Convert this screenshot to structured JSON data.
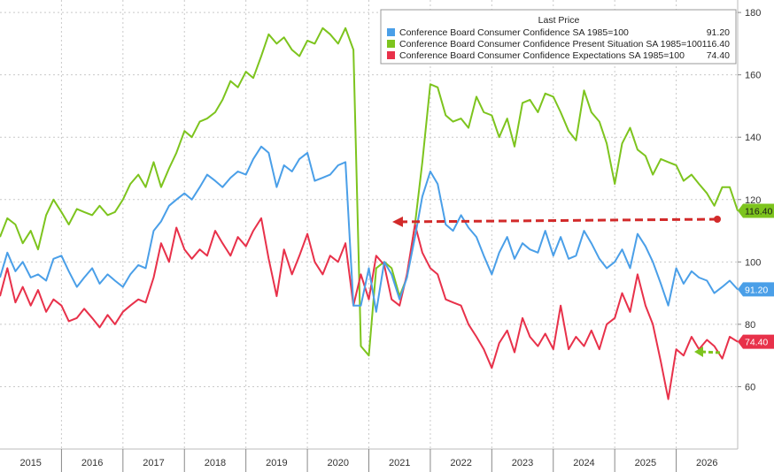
{
  "chart_data": {
    "type": "line",
    "title": "",
    "xlabel": "",
    "ylabel": "",
    "ylim": [
      40,
      184
    ],
    "xlim": [
      2014.5,
      2026.5
    ],
    "y_ticks": [
      60,
      80,
      100,
      120,
      140,
      160,
      180
    ],
    "x_tick_labels": [
      "2015",
      "2016",
      "2017",
      "2018",
      "2019",
      "2020",
      "2021",
      "2022",
      "2023",
      "2024",
      "2025",
      "2026"
    ],
    "grid": true,
    "legend": {
      "placement": "top-right",
      "header": "Last Price"
    },
    "series": [
      {
        "name": "Conference Board Consumer Confidence SA 1985=100",
        "last_price": "91.20",
        "color": "#4a9fe8",
        "points": [
          [
            2014.5,
            95
          ],
          [
            2014.62,
            103
          ],
          [
            2014.75,
            97
          ],
          [
            2014.87,
            100
          ],
          [
            2015.0,
            95
          ],
          [
            2015.12,
            96
          ],
          [
            2015.25,
            94
          ],
          [
            2015.37,
            101
          ],
          [
            2015.5,
            102
          ],
          [
            2015.62,
            97
          ],
          [
            2015.75,
            92
          ],
          [
            2015.87,
            95
          ],
          [
            2016.0,
            98
          ],
          [
            2016.12,
            93
          ],
          [
            2016.25,
            96
          ],
          [
            2016.37,
            94
          ],
          [
            2016.5,
            92
          ],
          [
            2016.62,
            96
          ],
          [
            2016.75,
            99
          ],
          [
            2016.87,
            98
          ],
          [
            2017.0,
            110
          ],
          [
            2017.12,
            113
          ],
          [
            2017.25,
            118
          ],
          [
            2017.37,
            120
          ],
          [
            2017.5,
            122
          ],
          [
            2017.62,
            120
          ],
          [
            2017.75,
            124
          ],
          [
            2017.87,
            128
          ],
          [
            2018.0,
            126
          ],
          [
            2018.12,
            124
          ],
          [
            2018.25,
            127
          ],
          [
            2018.37,
            129
          ],
          [
            2018.5,
            128
          ],
          [
            2018.62,
            133
          ],
          [
            2018.75,
            137
          ],
          [
            2018.87,
            135
          ],
          [
            2019.0,
            124
          ],
          [
            2019.12,
            131
          ],
          [
            2019.25,
            129
          ],
          [
            2019.37,
            133
          ],
          [
            2019.5,
            135
          ],
          [
            2019.62,
            126
          ],
          [
            2019.75,
            127
          ],
          [
            2019.87,
            128
          ],
          [
            2020.0,
            131
          ],
          [
            2020.12,
            132
          ],
          [
            2020.25,
            86
          ],
          [
            2020.37,
            86
          ],
          [
            2020.5,
            98
          ],
          [
            2020.62,
            84
          ],
          [
            2020.75,
            100
          ],
          [
            2020.87,
            96
          ],
          [
            2021.0,
            88
          ],
          [
            2021.12,
            95
          ],
          [
            2021.25,
            108
          ],
          [
            2021.37,
            121
          ],
          [
            2021.5,
            129
          ],
          [
            2021.62,
            125
          ],
          [
            2021.75,
            112
          ],
          [
            2021.87,
            110
          ],
          [
            2022.0,
            115
          ],
          [
            2022.12,
            111
          ],
          [
            2022.25,
            108
          ],
          [
            2022.37,
            102
          ],
          [
            2022.5,
            96
          ],
          [
            2022.62,
            103
          ],
          [
            2022.75,
            108
          ],
          [
            2022.87,
            101
          ],
          [
            2023.0,
            106
          ],
          [
            2023.12,
            104
          ],
          [
            2023.25,
            103
          ],
          [
            2023.37,
            110
          ],
          [
            2023.5,
            102
          ],
          [
            2023.62,
            108
          ],
          [
            2023.75,
            101
          ],
          [
            2023.87,
            102
          ],
          [
            2024.0,
            110
          ],
          [
            2024.12,
            106
          ],
          [
            2024.25,
            101
          ],
          [
            2024.37,
            98
          ],
          [
            2024.5,
            100
          ],
          [
            2024.62,
            104
          ],
          [
            2024.75,
            98
          ],
          [
            2024.87,
            109
          ],
          [
            2025.0,
            105
          ],
          [
            2025.12,
            100
          ],
          [
            2025.25,
            93
          ],
          [
            2025.37,
            86
          ],
          [
            2025.5,
            98
          ],
          [
            2025.62,
            93
          ],
          [
            2025.75,
            97
          ],
          [
            2025.87,
            95
          ],
          [
            2026.0,
            94
          ],
          [
            2026.12,
            90
          ],
          [
            2026.25,
            92
          ],
          [
            2026.37,
            94
          ],
          [
            2026.5,
            91.2
          ]
        ]
      },
      {
        "name": "Conference Board Consumer Confidence Present Situation SA 1985=100",
        "last_price": "116.40",
        "color": "#7dc41e",
        "points": [
          [
            2014.5,
            108
          ],
          [
            2014.62,
            114
          ],
          [
            2014.75,
            112
          ],
          [
            2014.87,
            106
          ],
          [
            2015.0,
            110
          ],
          [
            2015.12,
            104
          ],
          [
            2015.25,
            115
          ],
          [
            2015.37,
            120
          ],
          [
            2015.5,
            116
          ],
          [
            2015.62,
            112
          ],
          [
            2015.75,
            117
          ],
          [
            2015.87,
            116
          ],
          [
            2016.0,
            115
          ],
          [
            2016.12,
            118
          ],
          [
            2016.25,
            115
          ],
          [
            2016.37,
            116
          ],
          [
            2016.5,
            120
          ],
          [
            2016.62,
            125
          ],
          [
            2016.75,
            128
          ],
          [
            2016.87,
            124
          ],
          [
            2017.0,
            132
          ],
          [
            2017.12,
            124
          ],
          [
            2017.25,
            130
          ],
          [
            2017.37,
            135
          ],
          [
            2017.5,
            142
          ],
          [
            2017.62,
            140
          ],
          [
            2017.75,
            145
          ],
          [
            2017.87,
            146
          ],
          [
            2018.0,
            148
          ],
          [
            2018.12,
            152
          ],
          [
            2018.25,
            158
          ],
          [
            2018.37,
            156
          ],
          [
            2018.5,
            161
          ],
          [
            2018.62,
            159
          ],
          [
            2018.75,
            166
          ],
          [
            2018.87,
            173
          ],
          [
            2019.0,
            170
          ],
          [
            2019.12,
            172
          ],
          [
            2019.25,
            168
          ],
          [
            2019.37,
            166
          ],
          [
            2019.5,
            171
          ],
          [
            2019.62,
            170
          ],
          [
            2019.75,
            175
          ],
          [
            2019.87,
            173
          ],
          [
            2020.0,
            170
          ],
          [
            2020.12,
            175
          ],
          [
            2020.25,
            168
          ],
          [
            2020.37,
            73
          ],
          [
            2020.5,
            70
          ],
          [
            2020.62,
            98
          ],
          [
            2020.75,
            100
          ],
          [
            2020.87,
            98
          ],
          [
            2021.0,
            89
          ],
          [
            2021.12,
            95
          ],
          [
            2021.25,
            112
          ],
          [
            2021.37,
            132
          ],
          [
            2021.5,
            157
          ],
          [
            2021.62,
            156
          ],
          [
            2021.75,
            147
          ],
          [
            2021.87,
            145
          ],
          [
            2022.0,
            146
          ],
          [
            2022.12,
            143
          ],
          [
            2022.25,
            153
          ],
          [
            2022.37,
            148
          ],
          [
            2022.5,
            147
          ],
          [
            2022.62,
            140
          ],
          [
            2022.75,
            146
          ],
          [
            2022.87,
            137
          ],
          [
            2023.0,
            151
          ],
          [
            2023.12,
            152
          ],
          [
            2023.25,
            148
          ],
          [
            2023.37,
            154
          ],
          [
            2023.5,
            153
          ],
          [
            2023.62,
            148
          ],
          [
            2023.75,
            142
          ],
          [
            2023.87,
            139
          ],
          [
            2024.0,
            155
          ],
          [
            2024.12,
            148
          ],
          [
            2024.25,
            145
          ],
          [
            2024.37,
            138
          ],
          [
            2024.5,
            125
          ],
          [
            2024.62,
            138
          ],
          [
            2024.75,
            143
          ],
          [
            2024.87,
            136
          ],
          [
            2025.0,
            134
          ],
          [
            2025.12,
            128
          ],
          [
            2025.25,
            133
          ],
          [
            2025.37,
            132
          ],
          [
            2025.5,
            131
          ],
          [
            2025.62,
            126
          ],
          [
            2025.75,
            128
          ],
          [
            2025.87,
            125
          ],
          [
            2026.0,
            122
          ],
          [
            2026.12,
            118
          ],
          [
            2026.25,
            124
          ],
          [
            2026.37,
            124
          ],
          [
            2026.5,
            116.4
          ]
        ]
      },
      {
        "name": "Conference Board Consumer Confidence Expectations SA 1985=100",
        "last_price": "74.40",
        "color": "#e8314a",
        "points": [
          [
            2014.5,
            89
          ],
          [
            2014.62,
            98
          ],
          [
            2014.75,
            87
          ],
          [
            2014.87,
            92
          ],
          [
            2015.0,
            86
          ],
          [
            2015.12,
            91
          ],
          [
            2015.25,
            84
          ],
          [
            2015.37,
            88
          ],
          [
            2015.5,
            86
          ],
          [
            2015.62,
            81
          ],
          [
            2015.75,
            82
          ],
          [
            2015.87,
            85
          ],
          [
            2016.0,
            82
          ],
          [
            2016.12,
            79
          ],
          [
            2016.25,
            83
          ],
          [
            2016.37,
            80
          ],
          [
            2016.5,
            84
          ],
          [
            2016.62,
            86
          ],
          [
            2016.75,
            88
          ],
          [
            2016.87,
            87
          ],
          [
            2017.0,
            95
          ],
          [
            2017.12,
            106
          ],
          [
            2017.25,
            100
          ],
          [
            2017.37,
            111
          ],
          [
            2017.5,
            104
          ],
          [
            2017.62,
            101
          ],
          [
            2017.75,
            104
          ],
          [
            2017.87,
            102
          ],
          [
            2018.0,
            110
          ],
          [
            2018.12,
            106
          ],
          [
            2018.25,
            102
          ],
          [
            2018.37,
            108
          ],
          [
            2018.5,
            105
          ],
          [
            2018.62,
            110
          ],
          [
            2018.75,
            114
          ],
          [
            2018.87,
            101
          ],
          [
            2019.0,
            89
          ],
          [
            2019.12,
            104
          ],
          [
            2019.25,
            96
          ],
          [
            2019.37,
            102
          ],
          [
            2019.5,
            109
          ],
          [
            2019.62,
            100
          ],
          [
            2019.75,
            96
          ],
          [
            2019.87,
            102
          ],
          [
            2020.0,
            100
          ],
          [
            2020.12,
            106
          ],
          [
            2020.25,
            86
          ],
          [
            2020.37,
            96
          ],
          [
            2020.5,
            88
          ],
          [
            2020.62,
            102
          ],
          [
            2020.75,
            99
          ],
          [
            2020.87,
            88
          ],
          [
            2021.0,
            86
          ],
          [
            2021.12,
            96
          ],
          [
            2021.25,
            112
          ],
          [
            2021.37,
            103
          ],
          [
            2021.5,
            98
          ],
          [
            2021.62,
            96
          ],
          [
            2021.75,
            88
          ],
          [
            2021.87,
            87
          ],
          [
            2022.0,
            86
          ],
          [
            2022.12,
            80
          ],
          [
            2022.25,
            76
          ],
          [
            2022.37,
            72
          ],
          [
            2022.5,
            66
          ],
          [
            2022.62,
            74
          ],
          [
            2022.75,
            78
          ],
          [
            2022.87,
            71
          ],
          [
            2023.0,
            82
          ],
          [
            2023.12,
            76
          ],
          [
            2023.25,
            73
          ],
          [
            2023.37,
            77
          ],
          [
            2023.5,
            72
          ],
          [
            2023.62,
            86
          ],
          [
            2023.75,
            72
          ],
          [
            2023.87,
            76
          ],
          [
            2024.0,
            73
          ],
          [
            2024.12,
            78
          ],
          [
            2024.25,
            72
          ],
          [
            2024.37,
            80
          ],
          [
            2024.5,
            82
          ],
          [
            2024.62,
            90
          ],
          [
            2024.75,
            84
          ],
          [
            2024.87,
            96
          ],
          [
            2025.0,
            86
          ],
          [
            2025.12,
            80
          ],
          [
            2025.25,
            68
          ],
          [
            2025.37,
            56
          ],
          [
            2025.5,
            72
          ],
          [
            2025.62,
            70
          ],
          [
            2025.75,
            76
          ],
          [
            2025.87,
            72
          ],
          [
            2026.0,
            75
          ],
          [
            2026.12,
            73
          ],
          [
            2026.25,
            69
          ],
          [
            2026.37,
            76
          ],
          [
            2026.5,
            74.4
          ]
        ]
      }
    ]
  }
}
